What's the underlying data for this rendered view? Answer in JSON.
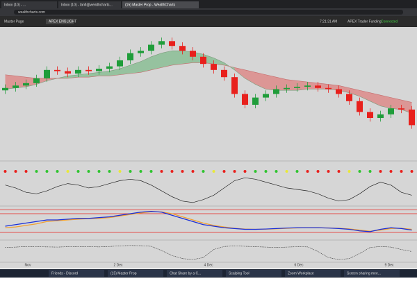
{
  "browser": {
    "tabs": [
      "Inbox (10) - ...",
      "Inbox (10) - tanfi@wealthcharts...",
      "(15) Master Prop - WealthCharts"
    ],
    "url": "wealthcharts.com"
  },
  "toolbar": {
    "items": [
      "Master Page",
      "APEX ENGLIGHT"
    ],
    "clock": "7:21:31 AM",
    "status": "APEX Trader Funding",
    "connection": "Connected"
  },
  "chart_data": {
    "type": "candlestick",
    "x_labels": [
      "Nov",
      "2 Dec",
      "4 Dec",
      "6 Dec",
      "9 Dec"
    ],
    "open": [
      49,
      51,
      53,
      55,
      59,
      66,
      65,
      63,
      66,
      65,
      67,
      69,
      74,
      80,
      82,
      87,
      90,
      86,
      82,
      77,
      71,
      66,
      60,
      46,
      37,
      43,
      46,
      50,
      51,
      52,
      53,
      51,
      50,
      46,
      40,
      31,
      26,
      29,
      34,
      33
    ],
    "close": [
      51,
      53,
      55,
      59,
      66,
      65,
      63,
      66,
      65,
      67,
      69,
      74,
      80,
      82,
      87,
      90,
      86,
      82,
      77,
      71,
      66,
      60,
      46,
      37,
      43,
      46,
      50,
      51,
      52,
      53,
      51,
      50,
      46,
      40,
      31,
      26,
      29,
      34,
      33,
      20
    ],
    "high": [
      54,
      56,
      58,
      62,
      69,
      69,
      68,
      69,
      69,
      70,
      72,
      77,
      83,
      85,
      90,
      93,
      93,
      89,
      85,
      80,
      74,
      69,
      63,
      49,
      46,
      49,
      53,
      54,
      55,
      56,
      56,
      54,
      53,
      49,
      43,
      34,
      32,
      37,
      37,
      36
    ],
    "low": [
      46,
      48,
      50,
      52,
      56,
      62,
      60,
      60,
      62,
      62,
      64,
      66,
      71,
      77,
      79,
      84,
      83,
      79,
      74,
      68,
      63,
      57,
      43,
      34,
      34,
      40,
      43,
      47,
      48,
      49,
      48,
      47,
      43,
      37,
      28,
      23,
      23,
      26,
      30,
      17
    ],
    "ma_fast": [
      50,
      51,
      52,
      54,
      57,
      59,
      61,
      62,
      63,
      64,
      65,
      67,
      70,
      73,
      77,
      80,
      82,
      82,
      81,
      79,
      76,
      72,
      66,
      59,
      54,
      50,
      49,
      49,
      49,
      50,
      50,
      50,
      49,
      47,
      44,
      40,
      36,
      34,
      33,
      30
    ],
    "ma_slow": [
      62,
      61,
      60,
      59,
      59,
      59,
      59,
      60,
      60,
      61,
      61,
      62,
      63,
      64,
      66,
      68,
      70,
      71,
      72,
      72,
      71,
      70,
      68,
      66,
      64,
      62,
      60,
      58,
      57,
      56,
      55,
      54,
      53,
      51,
      49,
      47,
      45,
      43,
      41,
      39
    ],
    "ylim": [
      0,
      100
    ],
    "up_color": "#1f9d3a",
    "down_color": "#e8201c",
    "dots": [
      "#e8201c",
      "#e8201c",
      "#e8201c",
      "#2fc42f",
      "#2fc42f",
      "#2fc42f",
      "#e8e83a",
      "#2fc42f",
      "#2fc42f",
      "#2fc42f",
      "#2fc42f",
      "#e8e83a",
      "#2fc42f",
      "#2fc42f",
      "#2fc42f",
      "#e8201c",
      "#e8201c",
      "#e8201c",
      "#e8201c",
      "#2fc42f",
      "#e8e83a",
      "#e8201c",
      "#e8201c",
      "#e8201c",
      "#2fc42f",
      "#2fc42f",
      "#2fc42f",
      "#e8e83a",
      "#2fc42f",
      "#e8201c",
      "#e8201c",
      "#e8201c",
      "#e8201c",
      "#e8e83a",
      "#2fc42f",
      "#2fc42f",
      "#e8201c",
      "#e8201c",
      "#e8201c",
      "#e8201c"
    ],
    "oscillator": [
      0.3,
      0.1,
      -0.2,
      -0.3,
      -0.1,
      0.2,
      0.4,
      0.3,
      0.1,
      0.2,
      0.4,
      0.6,
      0.7,
      0.6,
      0.3,
      -0.1,
      -0.5,
      -0.8,
      -0.9,
      -0.7,
      -0.4,
      0.1,
      0.6,
      0.8,
      0.7,
      0.5,
      0.3,
      0.1,
      0,
      -0.1,
      -0.3,
      -0.6,
      -0.8,
      -0.7,
      -0.3,
      0.2,
      0.5,
      0.3,
      -0.2,
      -0.4
    ],
    "osc_ylim": [
      -1,
      1
    ],
    "macd": [
      -0.2,
      -0.1,
      0,
      0.1,
      0.2,
      0.2,
      0.25,
      0.3,
      0.3,
      0.35,
      0.4,
      0.5,
      0.6,
      0.7,
      0.75,
      0.7,
      0.5,
      0.3,
      0.1,
      -0.1,
      -0.2,
      -0.3,
      -0.35,
      -0.4,
      -0.4,
      -0.38,
      -0.35,
      -0.32,
      -0.3,
      -0.3,
      -0.3,
      -0.32,
      -0.35,
      -0.4,
      -0.5,
      -0.55,
      -0.4,
      -0.3,
      -0.35,
      -0.45
    ],
    "signal": [
      -0.3,
      -0.25,
      -0.15,
      -0.05,
      0.1,
      0.15,
      0.2,
      0.25,
      0.28,
      0.3,
      0.35,
      0.45,
      0.55,
      0.65,
      0.72,
      0.72,
      0.6,
      0.4,
      0.2,
      0,
      -0.15,
      -0.25,
      -0.33,
      -0.38,
      -0.4,
      -0.39,
      -0.37,
      -0.34,
      -0.31,
      -0.3,
      -0.3,
      -0.31,
      -0.33,
      -0.37,
      -0.45,
      -0.52,
      -0.45,
      -0.35,
      -0.33,
      -0.4
    ],
    "macd_levels": [
      0.85,
      0.6,
      -0.6
    ],
    "macd_ylim": [
      -1,
      1
    ],
    "stoch": [
      70,
      72,
      75,
      74,
      73,
      72,
      74,
      75,
      74,
      73,
      75,
      78,
      80,
      79,
      76,
      55,
      30,
      15,
      10,
      20,
      60,
      75,
      78,
      76,
      74,
      72,
      70,
      72,
      74,
      73,
      50,
      20,
      10,
      15,
      40,
      70,
      75,
      72,
      60,
      50
    ],
    "stoch_ylim": [
      0,
      100
    ]
  },
  "taskbar": {
    "items": [
      "Friends - Discord",
      "(15) Master Prop",
      "Chat Share by a C...",
      "Scalping Tool",
      "Zoom Workplace",
      "Screen sharing mee..."
    ]
  }
}
